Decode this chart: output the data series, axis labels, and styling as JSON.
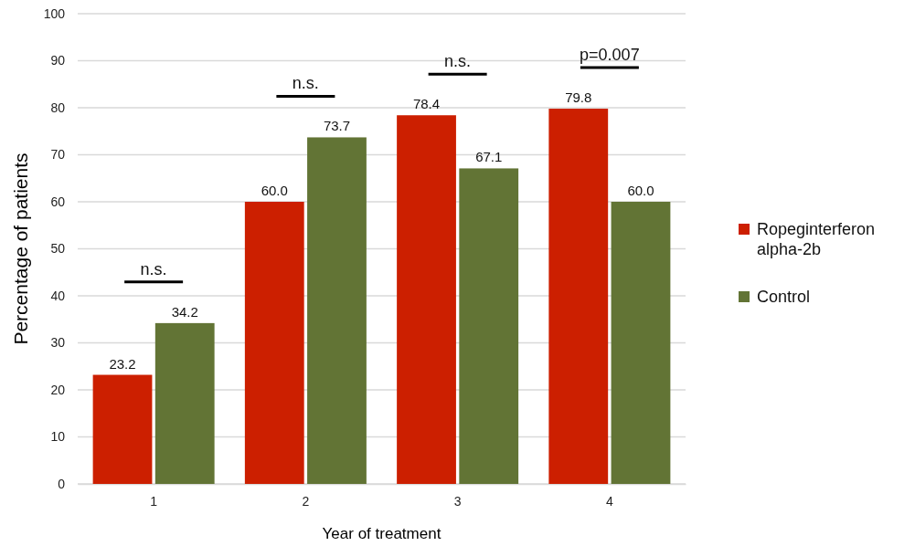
{
  "chart_data": {
    "type": "bar",
    "xlabel": "Year of treatment",
    "ylabel": "Percentage of patients",
    "categories": [
      "1",
      "2",
      "3",
      "4"
    ],
    "series": [
      {
        "name": "Ropeginterferon alpha-2b",
        "color": "#cc1f00",
        "values": [
          23.2,
          60.0,
          78.4,
          79.8
        ],
        "value_labels": [
          "23.2",
          "60.0",
          "78.4",
          "79.8"
        ]
      },
      {
        "name": "Control",
        "color": "#627435",
        "values": [
          34.2,
          73.7,
          67.1,
          60.0
        ],
        "value_labels": [
          "34.2",
          "73.7",
          "67.1",
          "60.0"
        ]
      }
    ],
    "ylim": [
      0,
      100
    ],
    "yticks": [
      0,
      10,
      20,
      30,
      40,
      50,
      60,
      70,
      80,
      90,
      100
    ],
    "grid": "y",
    "legend": "right",
    "annotations": [
      "n.s.",
      "n.s.",
      "n.s.",
      "p=0.007"
    ]
  }
}
